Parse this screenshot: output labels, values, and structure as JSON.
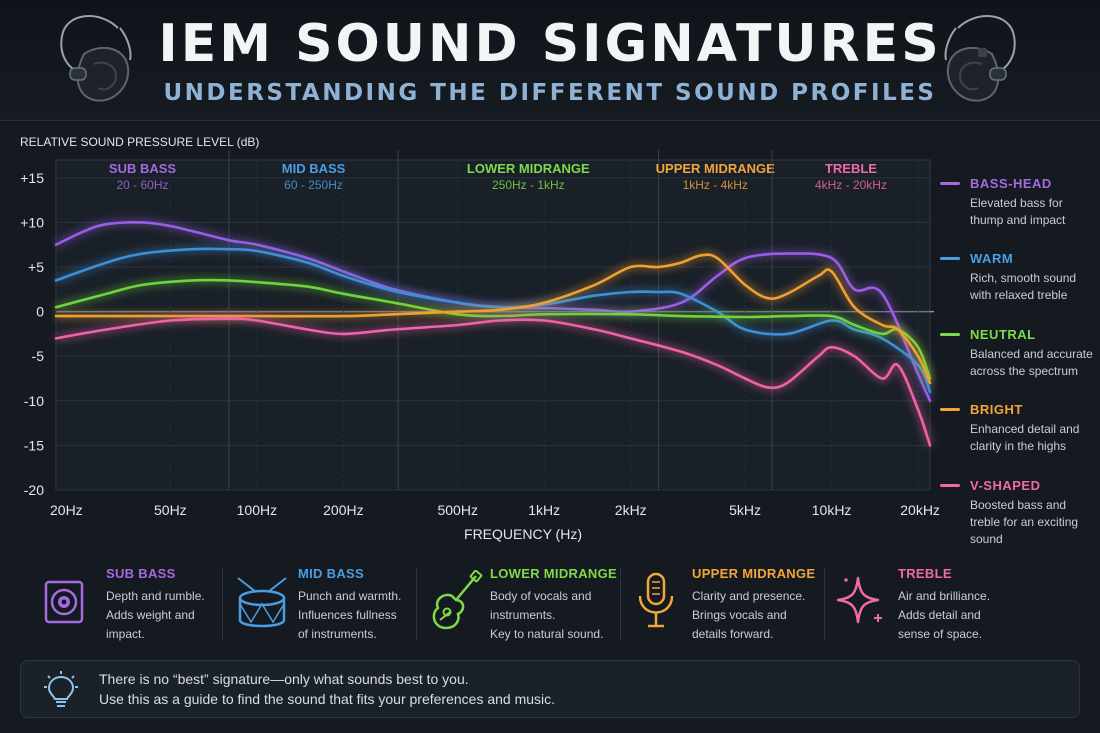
{
  "header": {
    "title": "IEM SOUND SIGNATURES",
    "subtitle": "UNDERSTANDING THE DIFFERENT SOUND PROFILES"
  },
  "chart_data": {
    "type": "line",
    "ylabel": "RELATIVE SOUND PRESSURE LEVEL (dB)",
    "xlabel": "FREQUENCY (Hz)",
    "xscale": "log",
    "xlim": [
      20,
      22000
    ],
    "ylim": [
      -20,
      17
    ],
    "yticks": [
      15,
      10,
      5,
      0,
      -5,
      -10,
      -15,
      -20
    ],
    "ytick_labels": [
      "+15",
      "+10",
      "+5",
      "0",
      "-5",
      "-10",
      "-15",
      "-20"
    ],
    "xticks": [
      20,
      50,
      100,
      200,
      500,
      1000,
      2000,
      5000,
      10000,
      20000
    ],
    "xtick_labels": [
      "20Hz",
      "50Hz",
      "100Hz",
      "200Hz",
      "500Hz",
      "1kHz",
      "2kHz",
      "5kHz",
      "10kHz",
      "20kHz"
    ],
    "bands": [
      {
        "name": "SUB BASS",
        "range": "20 - 60Hz",
        "from": 20,
        "to": 80,
        "color": "#a66ae0"
      },
      {
        "name": "MID BASS",
        "range": "60 - 250Hz",
        "from": 80,
        "to": 310,
        "color": "#4a9ee0"
      },
      {
        "name": "LOWER MIDRANGE",
        "range": "250Hz - 1kHz",
        "from": 310,
        "to": 2500,
        "color": "#7fd94a"
      },
      {
        "name": "UPPER MIDRANGE",
        "range": "1kHz - 4kHz",
        "from": 2500,
        "to": 6200,
        "color": "#f2a53a"
      },
      {
        "name": "TREBLE",
        "range": "4kHz - 20kHz",
        "from": 6200,
        "to": 22000,
        "color": "#f06aa8"
      }
    ],
    "series": [
      {
        "name": "BASS-HEAD",
        "color": "#9b5de5",
        "x": [
          20,
          25,
          30,
          40,
          50,
          60,
          80,
          100,
          150,
          200,
          300,
          500,
          700,
          1000,
          1500,
          2000,
          3000,
          4000,
          5000,
          7000,
          10000,
          12000,
          15000,
          20000,
          22000
        ],
        "y": [
          7.5,
          9,
          9.8,
          10,
          9.6,
          9,
          8,
          7.5,
          6,
          4.5,
          2.5,
          1,
          0.5,
          0.4,
          0.2,
          0,
          1,
          4,
          6,
          6.5,
          6,
          2.5,
          2,
          -7,
          -10
        ]
      },
      {
        "name": "WARM",
        "color": "#3d8fd6",
        "x": [
          20,
          30,
          40,
          60,
          80,
          100,
          150,
          200,
          300,
          500,
          700,
          1000,
          1500,
          2000,
          2500,
          3000,
          4000,
          5000,
          7000,
          10000,
          12000,
          15000,
          20000,
          22000
        ],
        "y": [
          3.5,
          5.5,
          6.5,
          7,
          7,
          6.8,
          5.5,
          4,
          2.3,
          1,
          0.5,
          0.8,
          1.8,
          2.2,
          2.2,
          2,
          0,
          -2,
          -2.5,
          -1,
          -2,
          -3,
          -6,
          -9
        ]
      },
      {
        "name": "NEUTRAL",
        "color": "#6ed33c",
        "x": [
          20,
          30,
          40,
          60,
          80,
          100,
          150,
          200,
          300,
          500,
          700,
          1000,
          2000,
          3000,
          5000,
          7000,
          10000,
          12000,
          15000,
          17000,
          20000,
          22000
        ],
        "y": [
          0.5,
          2,
          3,
          3.5,
          3.5,
          3.3,
          2.8,
          2,
          1,
          -0.3,
          -0.5,
          -0.3,
          -0.3,
          -0.5,
          -0.6,
          -0.5,
          -0.5,
          -1.5,
          -2.5,
          -2,
          -4,
          -7.5
        ]
      },
      {
        "name": "BRIGHT",
        "color": "#f0a030",
        "x": [
          20,
          50,
          100,
          200,
          300,
          500,
          700,
          1000,
          1500,
          2000,
          2500,
          3000,
          3500,
          4000,
          5000,
          6000,
          7000,
          9000,
          10000,
          12000,
          15000,
          17000,
          20000,
          22000
        ],
        "y": [
          -0.5,
          -0.5,
          -0.5,
          -0.5,
          -0.3,
          0,
          0.2,
          1,
          3,
          5,
          5,
          5.5,
          6.3,
          6,
          3,
          1.5,
          2,
          4,
          4.5,
          0.5,
          -1.5,
          -2,
          -5,
          -8
        ]
      },
      {
        "name": "V-SHAPED",
        "color": "#f062a6",
        "x": [
          20,
          30,
          50,
          80,
          100,
          150,
          200,
          300,
          500,
          700,
          1000,
          1500,
          2000,
          3000,
          4000,
          5000,
          6000,
          7000,
          9000,
          10000,
          12000,
          15000,
          17000,
          20000,
          22000
        ],
        "y": [
          -3,
          -2,
          -1,
          -0.8,
          -1,
          -2,
          -2.5,
          -2,
          -1.5,
          -1,
          -1,
          -2,
          -3,
          -4.5,
          -6,
          -7.5,
          -8.5,
          -8,
          -5,
          -4,
          -5,
          -7.5,
          -6,
          -11,
          -15
        ]
      }
    ]
  },
  "legend": [
    {
      "name": "BASS-HEAD",
      "desc": "Elevated bass for thump and impact",
      "color": "#a66ae0"
    },
    {
      "name": "WARM",
      "desc": "Rich, smooth sound with relaxed treble",
      "color": "#4a9ee0"
    },
    {
      "name": "NEUTRAL",
      "desc": "Balanced and accurate across the spectrum",
      "color": "#7fd94a"
    },
    {
      "name": "BRIGHT",
      "desc": "Enhanced detail and clarity in the highs",
      "color": "#f2a53a"
    },
    {
      "name": "V-SHAPED",
      "desc": "Boosted bass and treble for an exciting sound",
      "color": "#f06aa8"
    }
  ],
  "cards": [
    {
      "title": "SUB BASS",
      "text": "Depth and rumble.\nAdds weight and\nimpact.",
      "color": "#a66ae0",
      "icon": "speaker-icon"
    },
    {
      "title": "MID BASS",
      "text": "Punch and warmth.\nInfluences fullness\nof instruments.",
      "color": "#4a9ee0",
      "icon": "drum-icon"
    },
    {
      "title": "LOWER MIDRANGE",
      "text": "Body of vocals and\ninstruments.\nKey to natural sound.",
      "color": "#7fd94a",
      "icon": "guitar-icon"
    },
    {
      "title": "UPPER MIDRANGE",
      "text": "Clarity and presence.\nBrings vocals and\ndetails forward.",
      "color": "#f2a53a",
      "icon": "microphone-icon"
    },
    {
      "title": "TREBLE",
      "text": "Air and brilliance.\nAdds detail and\nsense of space.",
      "color": "#f06aa8",
      "icon": "sparkle-icon"
    }
  ],
  "note": {
    "line1": "There is no “best” signature—only what sounds best to you.",
    "line2": "Use this as a guide to find the sound that fits your preferences and music.",
    "icon": "lightbulb-icon"
  }
}
